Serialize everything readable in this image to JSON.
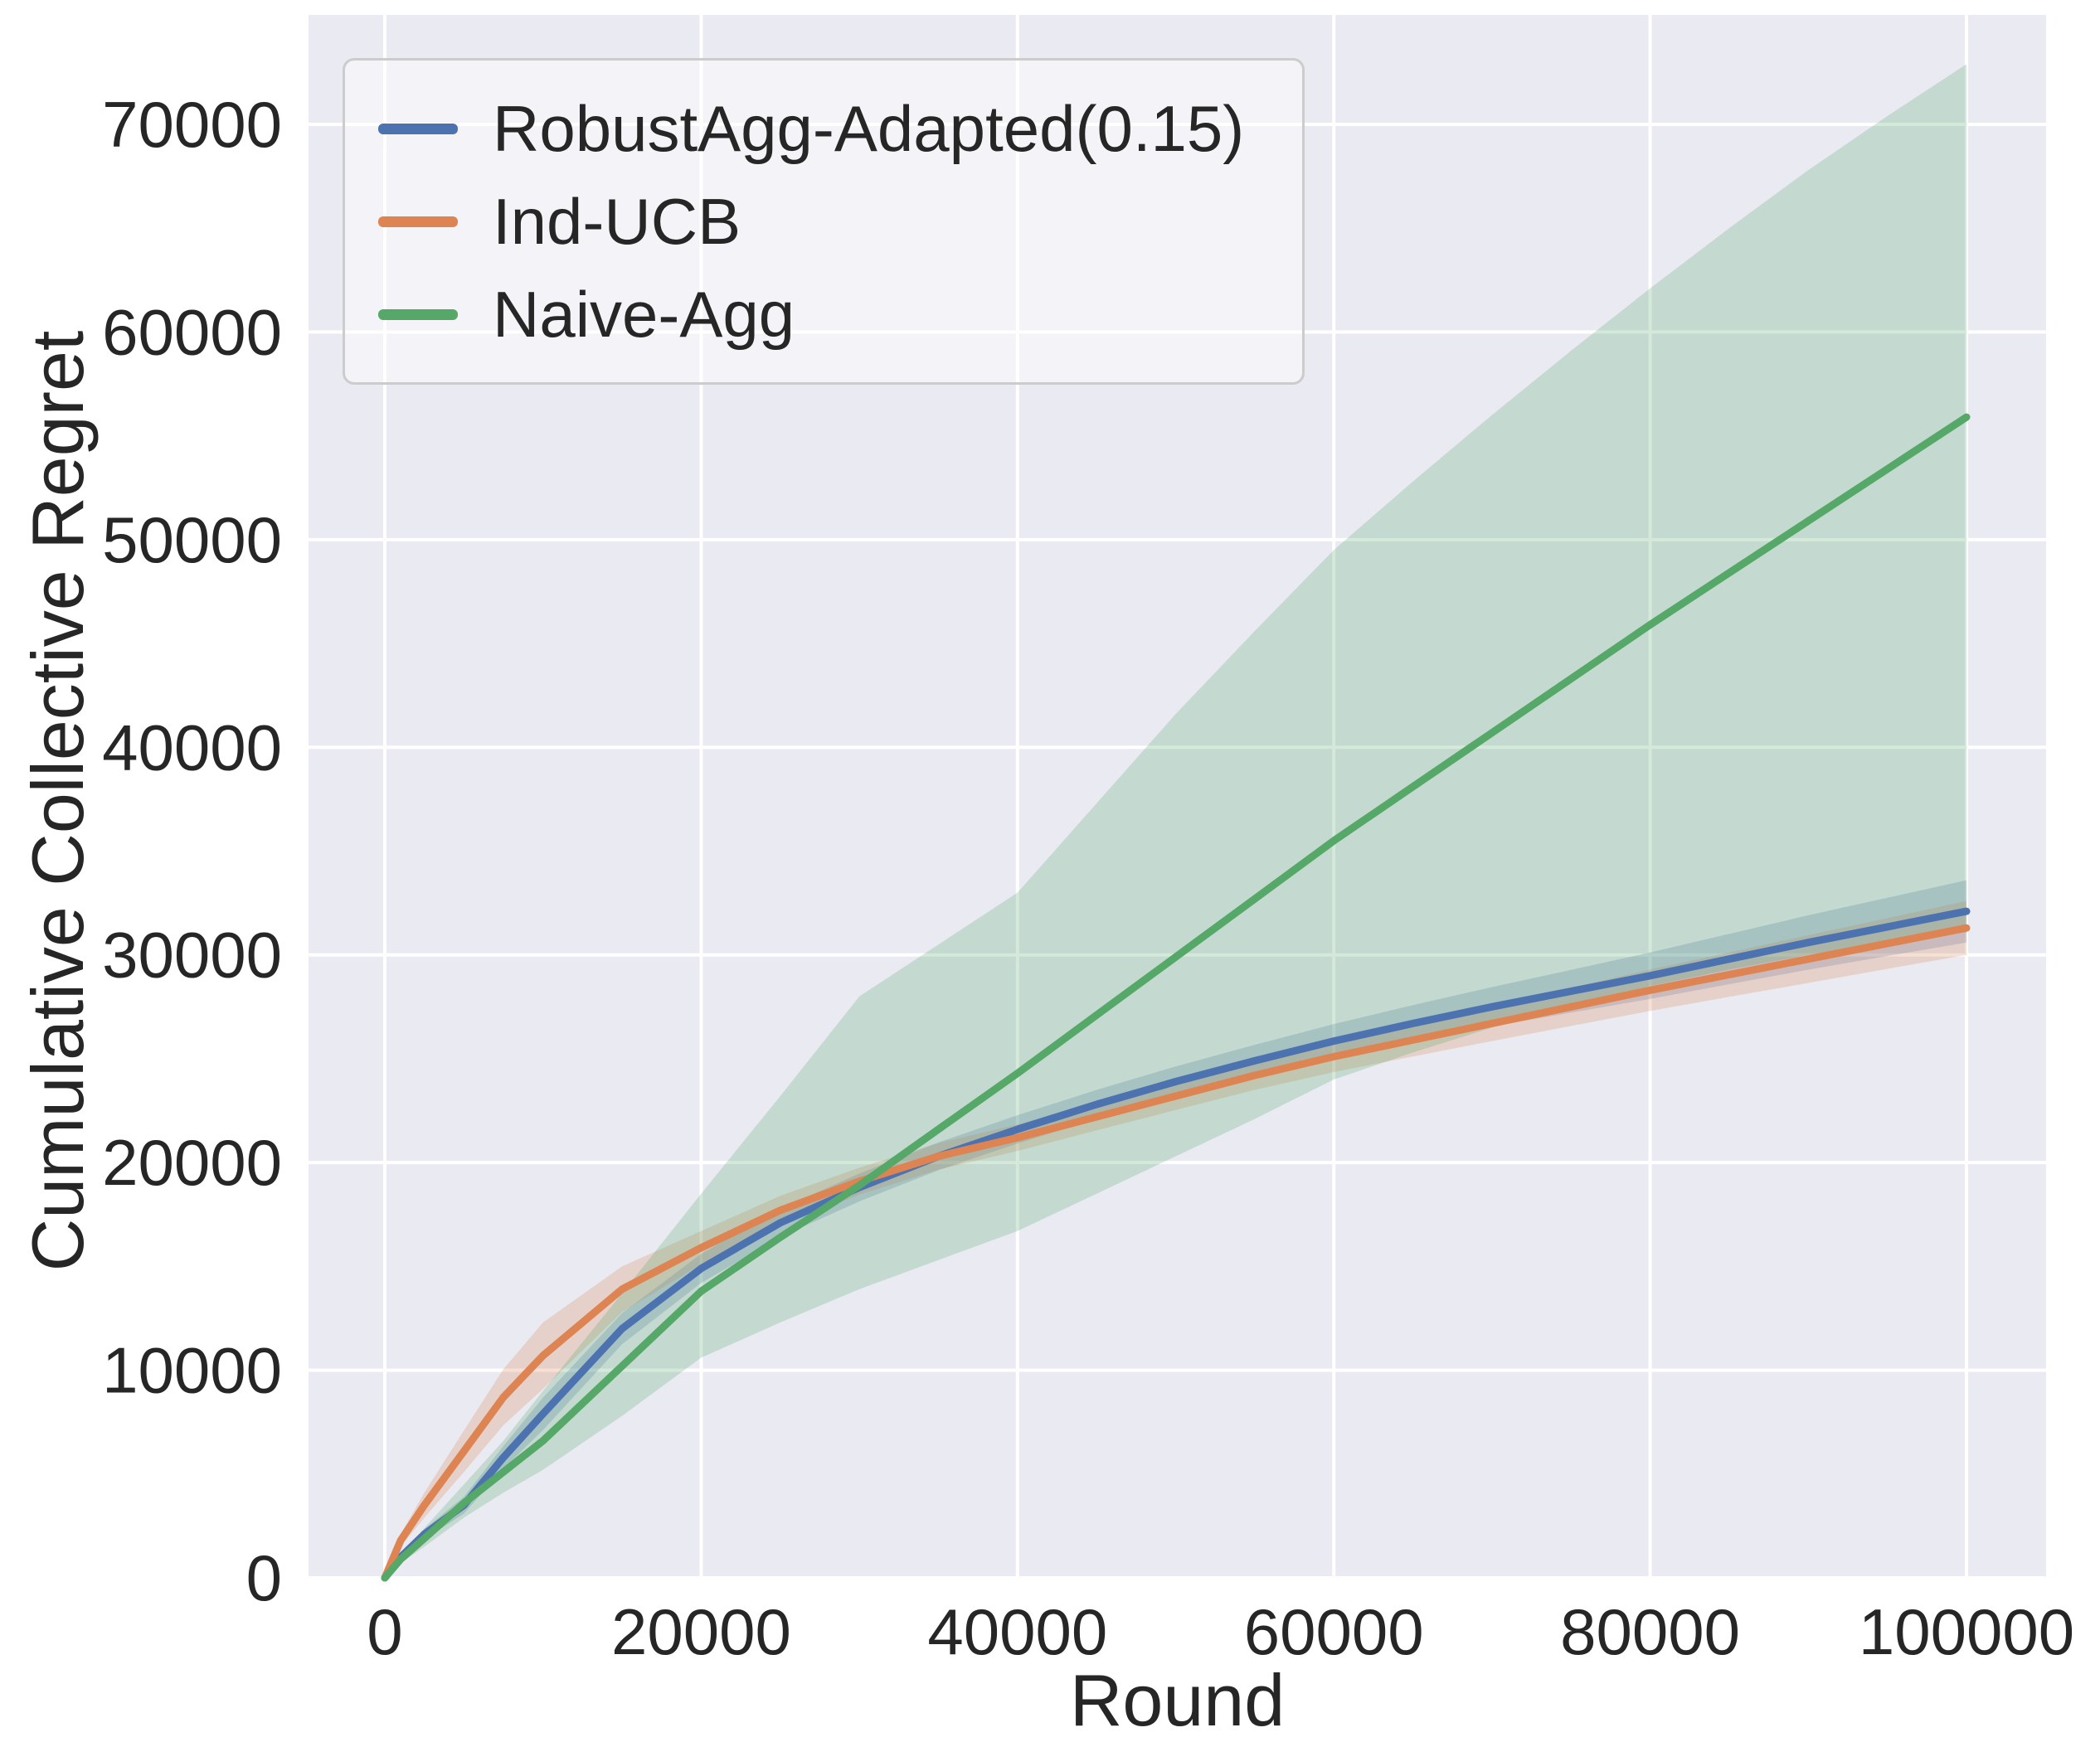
{
  "axes": {
    "xlabel": "Round",
    "ylabel": "Cumulative Collective Regret"
  },
  "colors": {
    "plot_background": "#eaeaf2",
    "grid": "#ffffff",
    "text": "#262626",
    "legend_border": "#cccccc"
  },
  "chart_data": {
    "type": "line",
    "title": "",
    "xlabel": "Round",
    "ylabel": "Cumulative Collective Regret",
    "grid": true,
    "legend_position": "upper left",
    "xlim": [
      0,
      100000
    ],
    "ylim": [
      0,
      70000
    ],
    "x_ticks": [
      0,
      20000,
      40000,
      60000,
      80000,
      100000
    ],
    "y_ticks": [
      0,
      10000,
      20000,
      30000,
      40000,
      50000,
      60000,
      70000
    ],
    "x": [
      0,
      1000,
      2500,
      5000,
      7500,
      10000,
      15000,
      20000,
      25000,
      30000,
      35000,
      40000,
      45000,
      50000,
      55000,
      60000,
      65000,
      70000,
      75000,
      80000,
      85000,
      90000,
      95000,
      100000
    ],
    "series": [
      {
        "name": "RobustAgg-Adapted(0.15)",
        "color": "#4c72b0",
        "band_opacity": 0.25,
        "mean": [
          0,
          1000,
          2100,
          3500,
          5800,
          7900,
          12000,
          14900,
          17100,
          18800,
          20300,
          21600,
          22800,
          23900,
          24900,
          25850,
          26700,
          27500,
          28250,
          29000,
          29800,
          30600,
          31350,
          32100
        ],
        "lo": [
          0,
          850,
          1850,
          3100,
          5250,
          7120,
          11250,
          14200,
          16420,
          18130,
          19630,
          20920,
          22100,
          23170,
          24130,
          25030,
          25820,
          26550,
          27220,
          27880,
          28590,
          29290,
          29950,
          30600
        ],
        "hi": [
          0,
          1150,
          2350,
          3900,
          6350,
          8680,
          12750,
          15600,
          17780,
          19470,
          20970,
          22280,
          23500,
          24630,
          25670,
          26670,
          27580,
          28450,
          29280,
          30120,
          31010,
          31910,
          32750,
          33600
        ]
      },
      {
        "name": "Ind-UCB",
        "color": "#dd8452",
        "band_opacity": 0.25,
        "mean": [
          0,
          1800,
          3500,
          6100,
          8700,
          10700,
          13900,
          15900,
          17700,
          19100,
          20300,
          21200,
          22200,
          23200,
          24200,
          25100,
          25900,
          26700,
          27500,
          28300,
          29050,
          29800,
          30550,
          31300
        ],
        "lo": [
          0,
          1500,
          2900,
          5100,
          7350,
          9100,
          12800,
          15100,
          17000,
          18450,
          19660,
          20560,
          21550,
          22530,
          23500,
          24360,
          25110,
          25850,
          26580,
          27300,
          27980,
          28650,
          29330,
          30000
        ],
        "hi": [
          0,
          2100,
          4100,
          7100,
          10050,
          12300,
          15000,
          16700,
          18400,
          19750,
          20940,
          21840,
          22850,
          23870,
          24900,
          25840,
          26690,
          27550,
          28420,
          29300,
          30120,
          30950,
          31770,
          32600
        ]
      },
      {
        "name": "Naive-Agg",
        "color": "#55a868",
        "band_opacity": 0.25,
        "mean": [
          0,
          900,
          1900,
          3600,
          5100,
          6600,
          10200,
          13800,
          16400,
          18900,
          21600,
          24300,
          27100,
          29900,
          32700,
          35500,
          38100,
          40700,
          43300,
          45900,
          48400,
          50900,
          53400,
          55900
        ],
        "lo": [
          0,
          700,
          1500,
          2900,
          4100,
          5200,
          7800,
          10600,
          12300,
          13900,
          15300,
          16700,
          18500,
          20300,
          22100,
          24000,
          25300,
          26500,
          27600,
          28500,
          29300,
          30000,
          30600,
          31100
        ],
        "hi": [
          0,
          1100,
          2400,
          4500,
          6600,
          9000,
          13700,
          18500,
          23200,
          28000,
          30500,
          33000,
          37300,
          41600,
          45600,
          49500,
          52800,
          56000,
          59100,
          62100,
          65000,
          67800,
          70400,
          72900
        ]
      }
    ]
  }
}
